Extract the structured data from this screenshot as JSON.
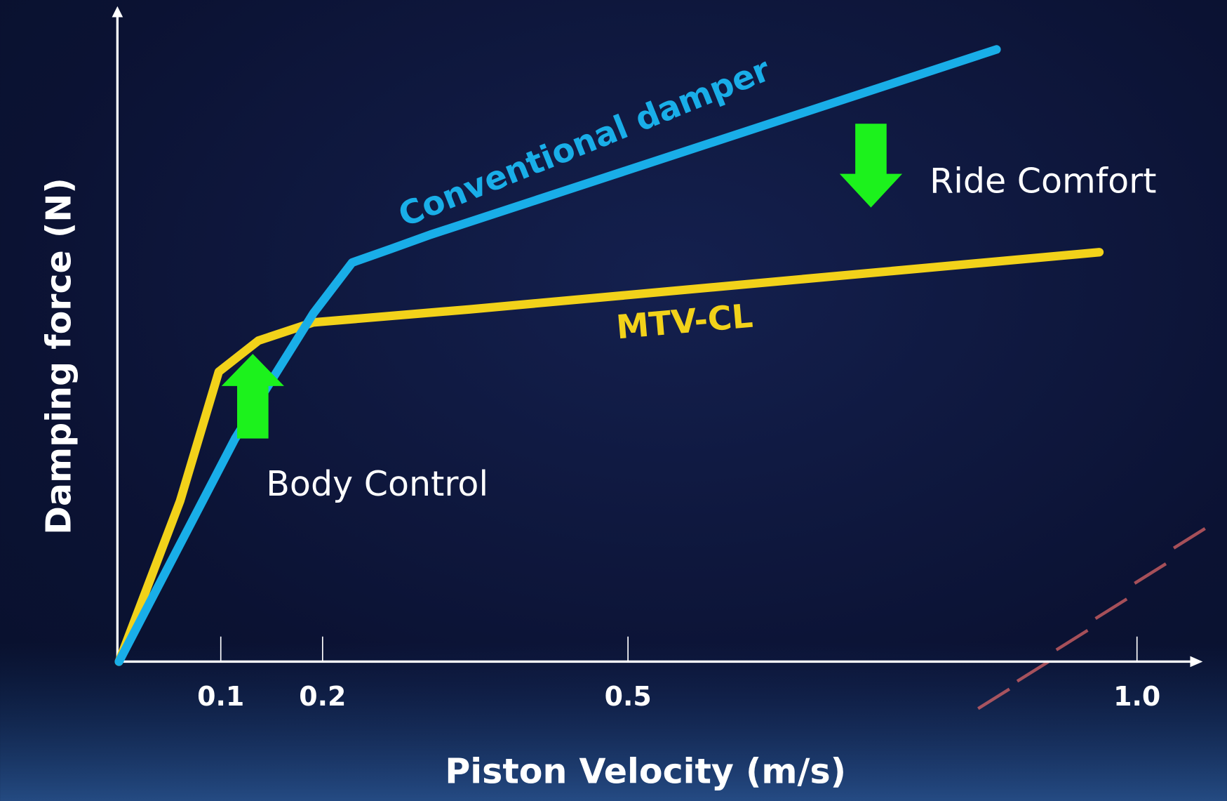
{
  "chart_data": {
    "type": "line",
    "x_label": "Piston Velocity (m/s)",
    "y_label": "Damping force (N)",
    "xlim": [
      0,
      1.063
    ],
    "xticks": [
      0.1,
      0.2,
      0.5,
      {
        "value": 1,
        "label": "1.0"
      }
    ],
    "ylim": [
      0,
      100
    ],
    "grid": false,
    "series": [
      {
        "name": "Conventional damper",
        "color": "#19aee8",
        "x": [
          0,
          0.114,
          0.191,
          0.229,
          0.267,
          0.306,
          0.862
        ],
        "values": [
          0,
          34.3,
          53.6,
          61.4,
          63.5,
          65.7,
          94.2
        ]
      },
      {
        "name": "MTV-CL",
        "color": "#f2d21a",
        "x": [
          0,
          0.06,
          0.098,
          0.137,
          0.191,
          0.344,
          0.963
        ],
        "values": [
          0,
          24.7,
          44.6,
          49.4,
          52.2,
          54.2,
          63.0
        ]
      }
    ],
    "annotations": [
      "Ride Comfort",
      "Body Control"
    ]
  }
}
